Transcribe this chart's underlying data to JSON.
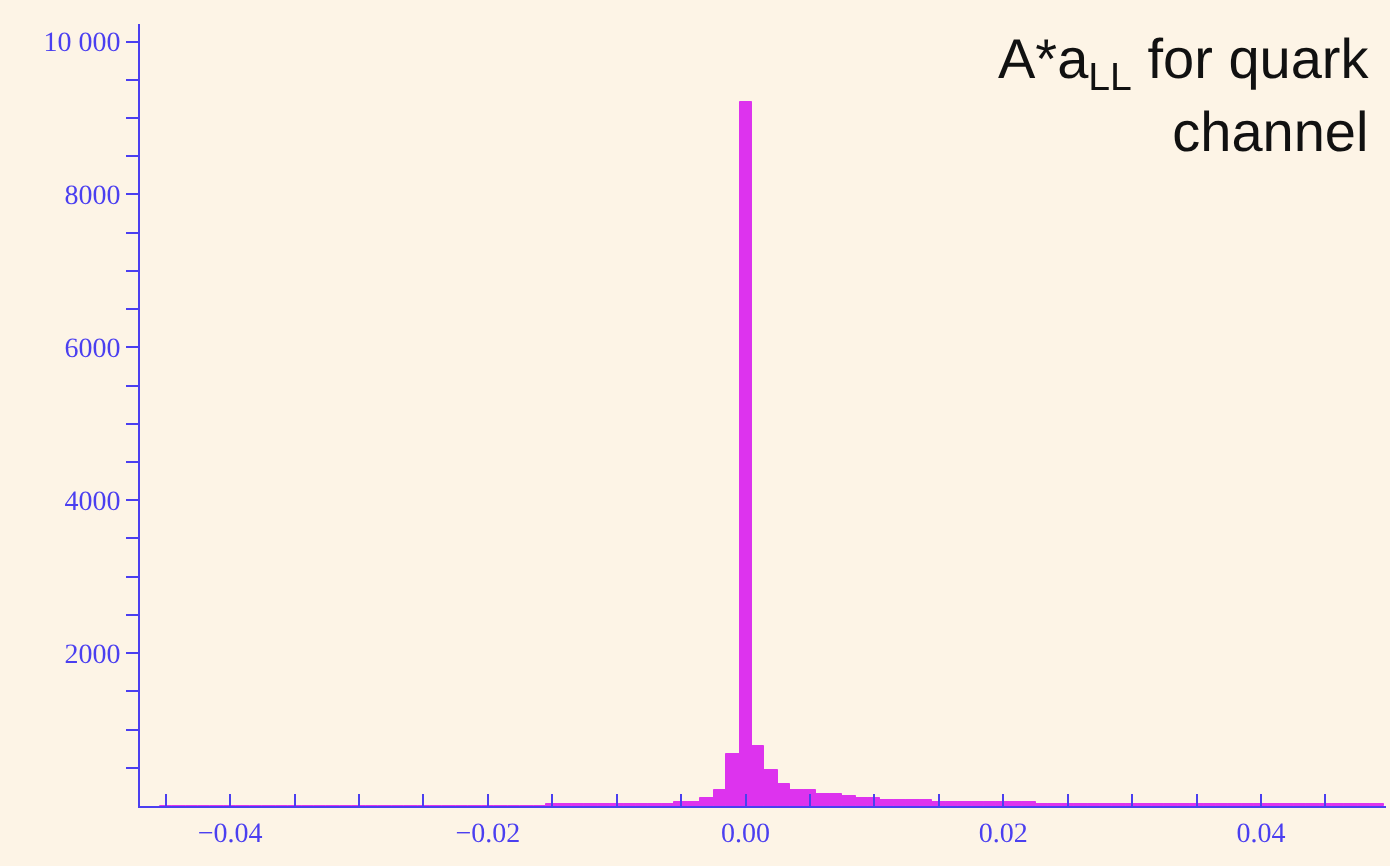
{
  "chart_data": {
    "type": "histogram",
    "title": "A*a$_{LL}$ for quark\nchannel",
    "bins": [
      -0.0455,
      -0.0445,
      -0.0435,
      -0.0425,
      -0.0415,
      -0.0405,
      -0.0395,
      -0.0385,
      -0.0375,
      -0.0365,
      -0.0355,
      -0.0345,
      -0.0335,
      -0.0325,
      -0.0315,
      -0.0305,
      -0.0295,
      -0.0285,
      -0.0275,
      -0.0265,
      -0.0255,
      -0.0245,
      -0.0235,
      -0.0225,
      -0.0215,
      -0.0205,
      -0.0195,
      -0.0185,
      -0.0175,
      -0.0165,
      -0.0155,
      -0.0145,
      -0.0135,
      -0.0125,
      -0.0115,
      -0.0105,
      -0.0095,
      -0.0085,
      -0.0075,
      -0.0065,
      -0.0055,
      -0.0045,
      -0.0035,
      -0.0025,
      -0.0015,
      -0.0005,
      0.0005,
      0.0015,
      0.0025,
      0.0035,
      0.0045,
      0.0055,
      0.0065,
      0.0075,
      0.0085,
      0.0095,
      0.0105,
      0.0115,
      0.0125,
      0.0135,
      0.0145,
      0.0155,
      0.0165,
      0.0175,
      0.0185,
      0.0195,
      0.0205,
      0.0215,
      0.0225,
      0.0235,
      0.0245,
      0.0255,
      0.0265,
      0.0275,
      0.0285,
      0.0295,
      0.0305,
      0.0315,
      0.0325,
      0.0335,
      0.0345,
      0.0355,
      0.0365,
      0.0375,
      0.0385,
      0.0395,
      0.0405,
      0.0415,
      0.0425,
      0.0435,
      0.0445,
      0.0455,
      0.0465,
      0.0475,
      0.0485,
      0.0495
    ],
    "values": [
      0,
      0,
      0,
      0,
      0,
      0,
      0,
      0,
      0,
      0,
      0,
      0,
      0,
      0,
      0,
      0,
      0,
      0,
      0,
      0,
      0,
      0,
      0,
      0,
      0,
      10,
      10,
      10,
      10,
      10,
      20,
      20,
      20,
      20,
      20,
      20,
      30,
      30,
      30,
      30,
      40,
      60,
      100,
      210,
      670,
      9200,
      790,
      460,
      300,
      210,
      200,
      170,
      150,
      120,
      95,
      95,
      80,
      80,
      70,
      70,
      60,
      50,
      50,
      45,
      45,
      42,
      40,
      40,
      38,
      38,
      36,
      35,
      34,
      33,
      32,
      31,
      30,
      30,
      29,
      28,
      27,
      27,
      26,
      25,
      25,
      24,
      24,
      23,
      22,
      22,
      21,
      21,
      20,
      20,
      19
    ],
    "color": "#dd33ee",
    "xlim": [
      -0.047,
      0.0497
    ],
    "xticks": [
      {
        "value": -0.045,
        "label": null
      },
      {
        "value": -0.04,
        "label": "−0.04"
      },
      {
        "value": -0.035,
        "label": null
      },
      {
        "value": -0.03,
        "label": null
      },
      {
        "value": -0.025,
        "label": null
      },
      {
        "value": -0.02,
        "label": "−0.02"
      },
      {
        "value": -0.015,
        "label": null
      },
      {
        "value": -0.01,
        "label": null
      },
      {
        "value": -0.005,
        "label": null
      },
      {
        "value": 0.0,
        "label": "0.00"
      },
      {
        "value": 0.005,
        "label": null
      },
      {
        "value": 0.01,
        "label": null
      },
      {
        "value": 0.015,
        "label": null
      },
      {
        "value": 0.02,
        "label": "0.02"
      },
      {
        "value": 0.025,
        "label": null
      },
      {
        "value": 0.03,
        "label": null
      },
      {
        "value": 0.035,
        "label": null
      },
      {
        "value": 0.04,
        "label": "0.04"
      },
      {
        "value": 0.045,
        "label": null
      }
    ],
    "ylim": [
      0,
      10230
    ],
    "yticks": [
      {
        "value": 500,
        "label": null
      },
      {
        "value": 1000,
        "label": null
      },
      {
        "value": 1500,
        "label": null
      },
      2000,
      {
        "value": 2500,
        "label": null
      },
      {
        "value": 3000,
        "label": null
      },
      {
        "value": 3500,
        "label": null
      },
      4000,
      {
        "value": 4500,
        "label": null
      },
      {
        "value": 5000,
        "label": null
      },
      {
        "value": 5500,
        "label": null
      },
      6000,
      {
        "value": 6500,
        "label": null
      },
      {
        "value": 7000,
        "label": null
      },
      {
        "value": 7500,
        "label": null
      },
      8000,
      {
        "value": 8500,
        "label": null
      },
      {
        "value": 9000,
        "label": null
      },
      {
        "value": 9500,
        "label": null
      },
      {
        "value": 10000,
        "label": "10 000"
      }
    ],
    "grid": false
  }
}
